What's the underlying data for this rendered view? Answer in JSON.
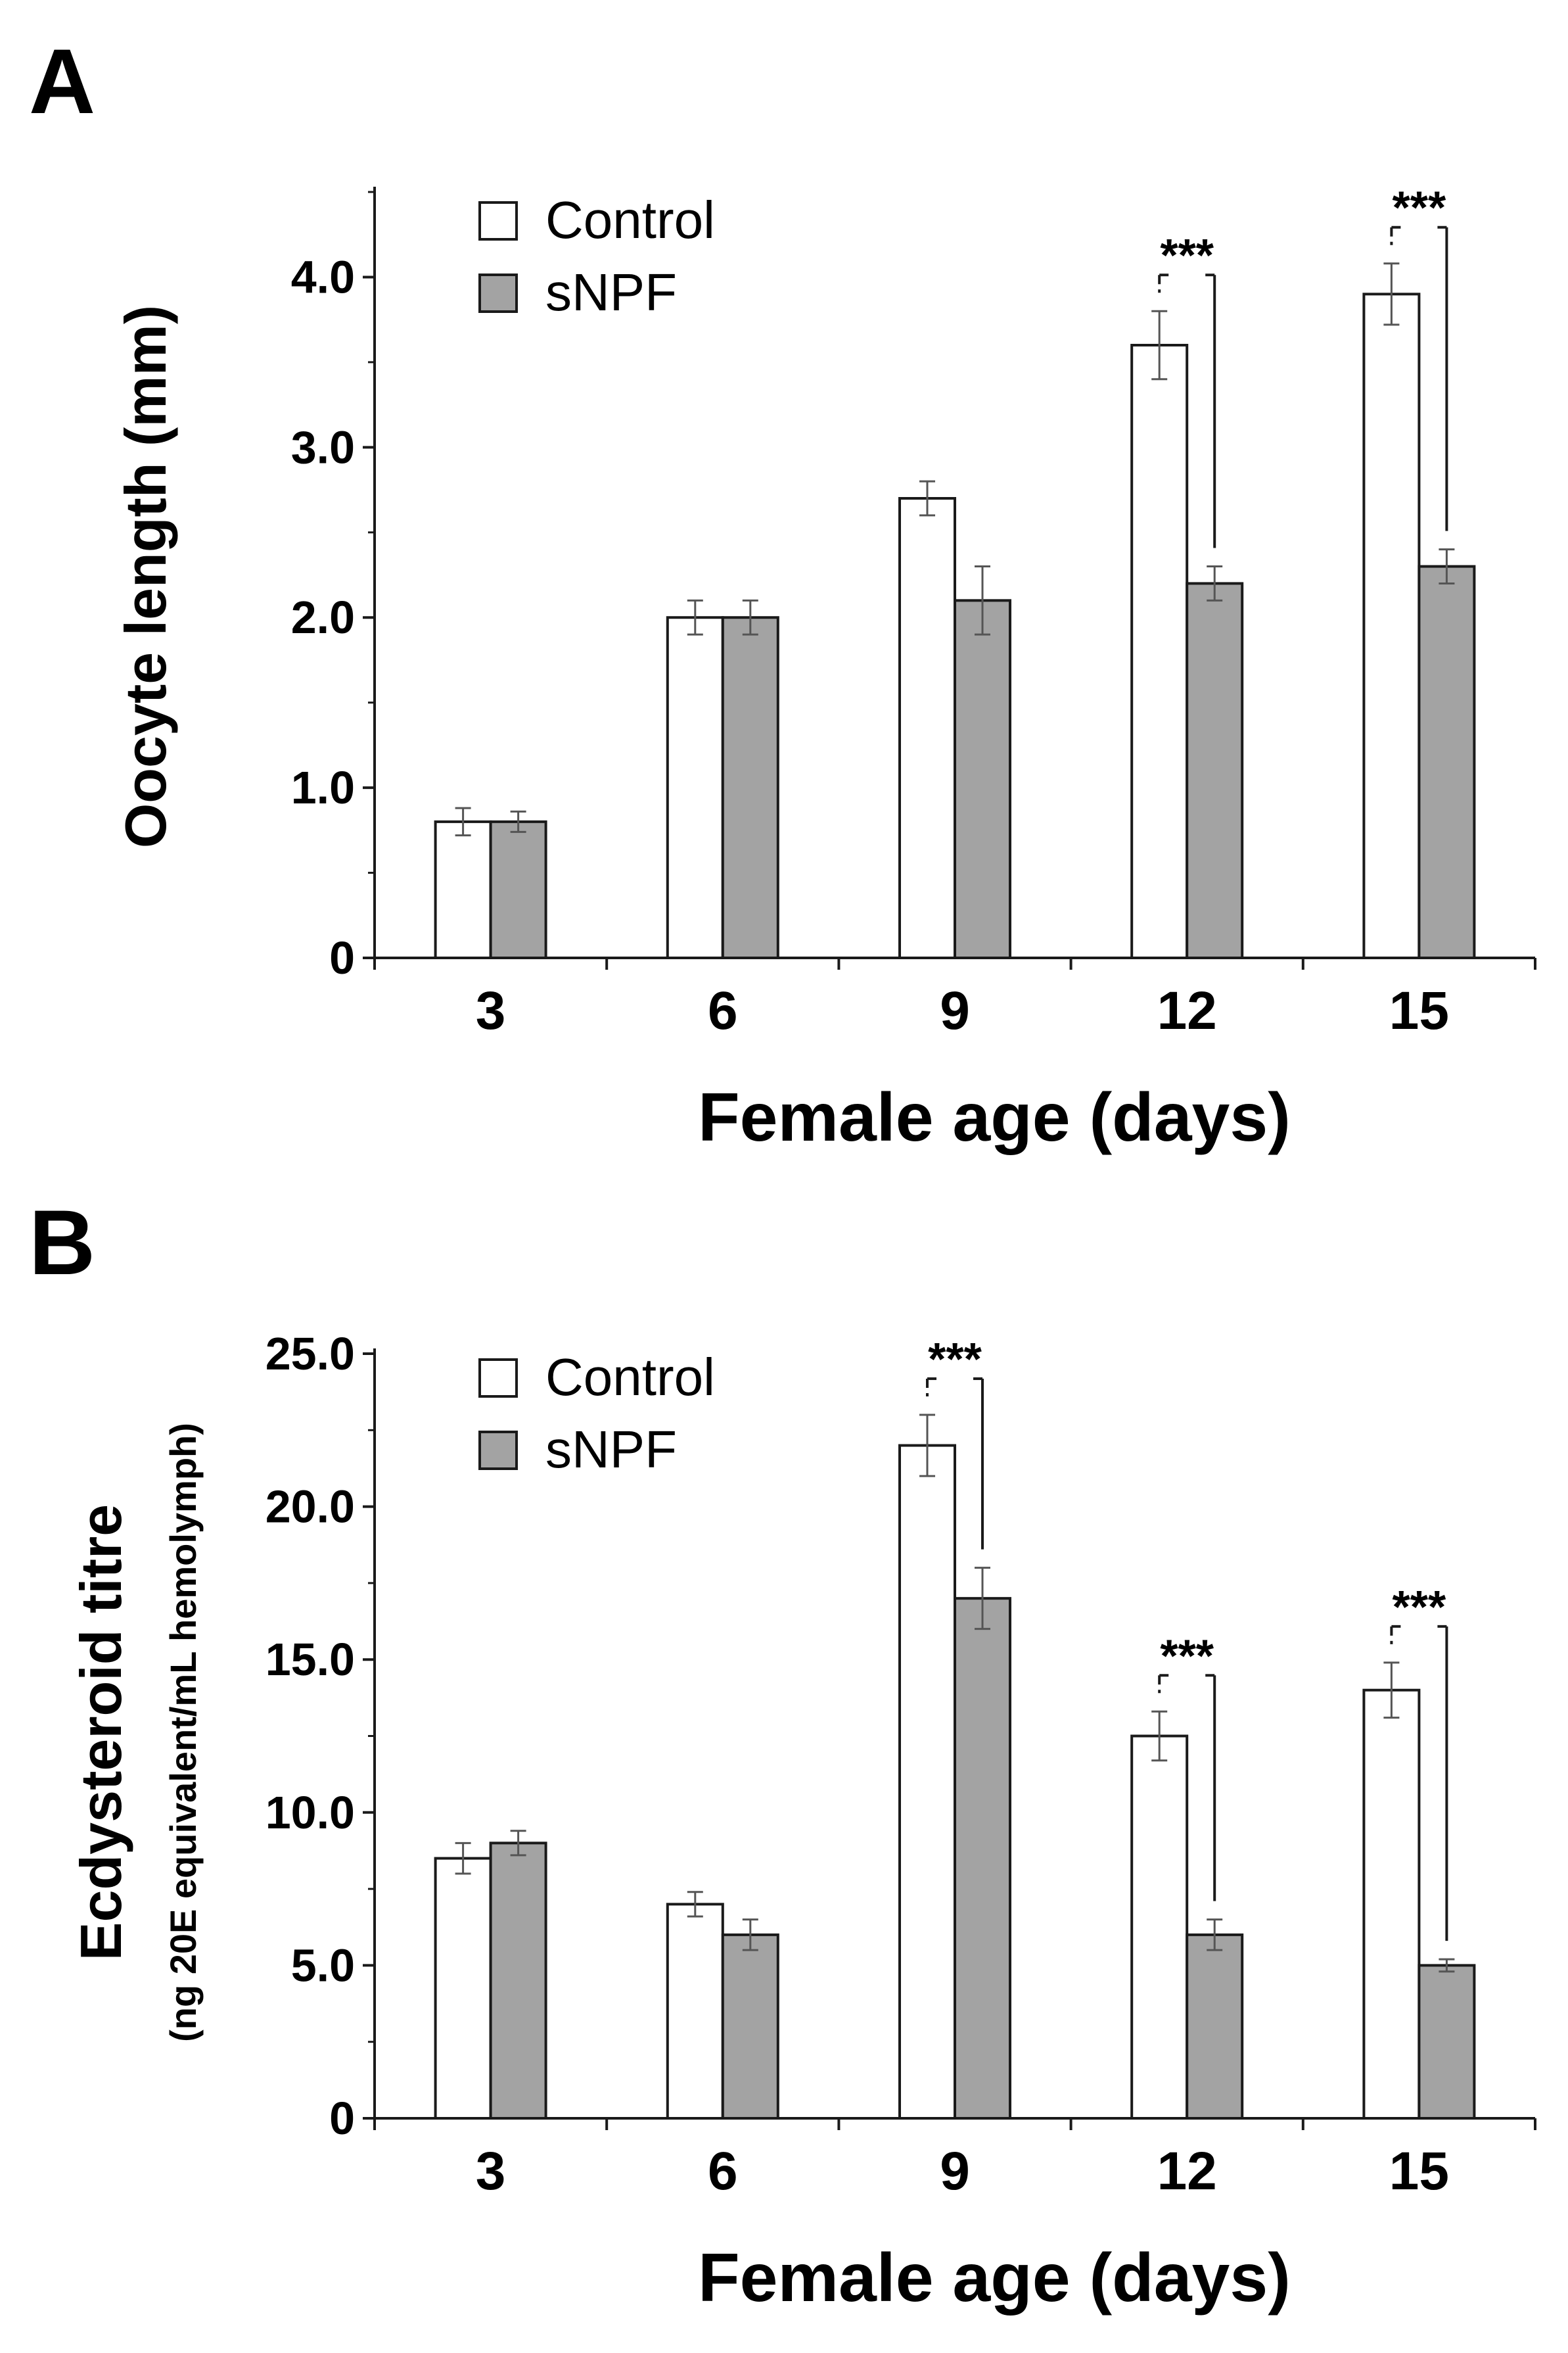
{
  "panels": [
    "A",
    "B"
  ],
  "colors": {
    "control": "#ffffff",
    "snpf": "#a3a3a3",
    "axis": "#1a1a1a",
    "errorbar": "#555555"
  },
  "chart_data": [
    {
      "type": "bar",
      "panel": "A",
      "xlabel": "Female age (days)",
      "ylabel": "Oocyte length (mm)",
      "ylim": [
        0,
        4.5
      ],
      "yticks": [
        0,
        1,
        2,
        3,
        4
      ],
      "ytick_labels": [
        "0",
        "1.0",
        "2.0",
        "3.0",
        "4.0"
      ],
      "categories": [
        "3",
        "6",
        "9",
        "12",
        "15"
      ],
      "legend": {
        "position": "top-left",
        "entries": [
          "Control",
          "sNPF"
        ]
      },
      "series": [
        {
          "name": "Control",
          "values": [
            0.8,
            2.0,
            2.7,
            3.6,
            3.9
          ],
          "errors": [
            0.08,
            0.1,
            0.1,
            0.2,
            0.18
          ]
        },
        {
          "name": "sNPF",
          "values": [
            0.8,
            2.0,
            2.1,
            2.2,
            2.3
          ],
          "errors": [
            0.06,
            0.1,
            0.2,
            0.1,
            0.1
          ]
        }
      ],
      "significance": [
        {
          "category": "12",
          "label": "***"
        },
        {
          "category": "15",
          "label": "***"
        }
      ]
    },
    {
      "type": "bar",
      "panel": "B",
      "xlabel": "Female age (days)",
      "ylabel": "Ecdysteroid titre",
      "ylabel2": "(ng 20E equivalent/mL hemolymph)",
      "ylim": [
        0,
        25
      ],
      "yticks": [
        0,
        5,
        10,
        15,
        20,
        25
      ],
      "ytick_labels": [
        "0",
        "5.0",
        "10.0",
        "15.0",
        "20.0",
        "25.0"
      ],
      "categories": [
        "3",
        "6",
        "9",
        "12",
        "15"
      ],
      "legend": {
        "position": "top-left",
        "entries": [
          "Control",
          "sNPF"
        ]
      },
      "series": [
        {
          "name": "Control",
          "values": [
            8.5,
            7.0,
            22.0,
            12.5,
            14.0
          ],
          "errors": [
            0.5,
            0.4,
            1.0,
            0.8,
            0.9
          ]
        },
        {
          "name": "sNPF",
          "values": [
            9.0,
            6.0,
            17.0,
            6.0,
            5.0
          ],
          "errors": [
            0.4,
            0.5,
            1.0,
            0.5,
            0.2
          ]
        }
      ],
      "significance": [
        {
          "category": "9",
          "label": "***"
        },
        {
          "category": "12",
          "label": "***"
        },
        {
          "category": "15",
          "label": "***"
        }
      ]
    }
  ]
}
